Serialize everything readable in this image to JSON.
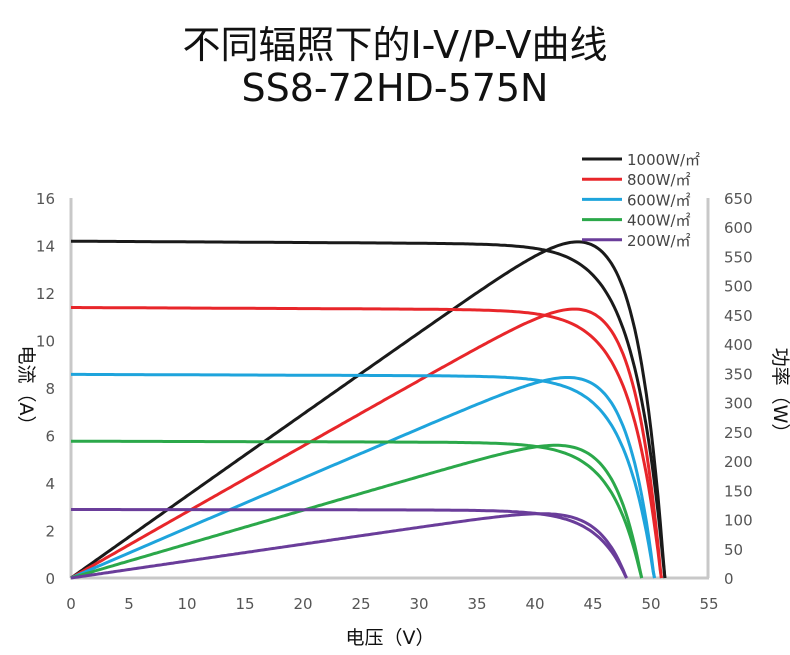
{
  "title": "不同辐照下的I-V/P-V曲线",
  "subtitle": "SS8-72HD-575N",
  "chart_data": {
    "type": "line",
    "title": "不同辐照下的I-V/P-V曲线",
    "subtitle": "SS8-72HD-575N",
    "xlabel": "电压（V）",
    "ylabel_left": "电流（A）",
    "ylabel_right": "功率（W）",
    "xlim": [
      0,
      55
    ],
    "ylim_left": [
      0,
      16
    ],
    "ylim_right": [
      0,
      650
    ],
    "x_ticks": [
      "0",
      "5",
      "10",
      "15",
      "20",
      "25",
      "30",
      "35",
      "40",
      "45",
      "50",
      "55"
    ],
    "y_left_ticks": [
      "0",
      "2",
      "4",
      "6",
      "8",
      "10",
      "12",
      "14",
      "16"
    ],
    "y_right_ticks": [
      "0",
      "50",
      "100",
      "150",
      "200",
      "250",
      "300",
      "350",
      "400",
      "450",
      "500",
      "550",
      "600",
      "650"
    ],
    "grid": false,
    "legend_placement": "top-right",
    "series": [
      {
        "name": "1000W/㎡",
        "color": "#1a1a1a",
        "isc": 14.3,
        "voc": 51.2,
        "vmp": 42.6,
        "pmax": 575
      },
      {
        "name": "800W/㎡",
        "color": "#e8262a",
        "isc": 11.45,
        "voc": 50.9,
        "vmp": 42.8,
        "pmax": 460
      },
      {
        "name": "600W/㎡",
        "color": "#1ea4dc",
        "isc": 8.58,
        "voc": 50.3,
        "vmp": 42.6,
        "pmax": 343
      },
      {
        "name": "400W/㎡",
        "color": "#2ba84a",
        "isc": 5.7,
        "voc": 49.2,
        "vmp": 42.0,
        "pmax": 227
      },
      {
        "name": "200W/㎡",
        "color": "#6a3d9a",
        "isc": 2.86,
        "voc": 47.9,
        "vmp": 41.0,
        "pmax": 110
      }
    ]
  }
}
